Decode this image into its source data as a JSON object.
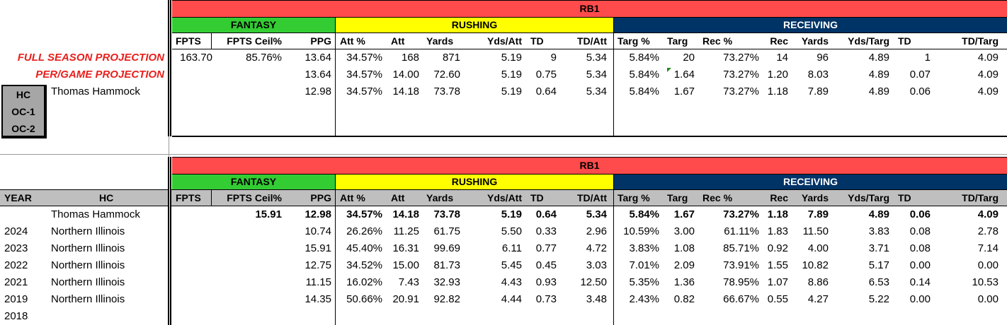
{
  "top": {
    "position_label": "RB1",
    "sections": {
      "fantasy": "FANTASY",
      "rushing": "RUSHING",
      "receiving": "RECEIVING"
    },
    "columns": [
      "FPTS",
      "FPTS Ceil%",
      "PPG",
      "Att %",
      "Att",
      "Yards",
      "Yds/Att",
      "TD",
      "TD/Att",
      "Targ %",
      "Targ",
      "Rec %",
      "Rec",
      "Yards",
      "Yds/Targ",
      "TD",
      "TD/Targ"
    ],
    "full_season_label": "FULL SEASON PROJECTION",
    "per_game_label": "PER/GAME PROJECTION",
    "coach_box": [
      "HC",
      "OC-1",
      "OC-2"
    ],
    "coach_name": "Thomas Hammock",
    "rows": [
      [
        "163.70",
        "85.76%",
        "13.64",
        "34.57%",
        "168",
        "871",
        "5.19",
        "9",
        "5.34",
        "5.84%",
        "20",
        "73.27%",
        "14",
        "96",
        "4.89",
        "1",
        "4.09"
      ],
      [
        "",
        "",
        "13.64",
        "34.57%",
        "14.00",
        "72.60",
        "5.19",
        "0.75",
        "5.34",
        "5.84%",
        "1.64",
        "73.27%",
        "1.20",
        "8.03",
        "4.89",
        "0.07",
        "4.09"
      ],
      [
        "",
        "",
        "12.98",
        "34.57%",
        "14.18",
        "73.78",
        "5.19",
        "0.64",
        "5.34",
        "5.84%",
        "1.67",
        "73.27%",
        "1.18",
        "7.89",
        "4.89",
        "0.06",
        "4.09"
      ]
    ]
  },
  "bottom": {
    "position_label": "RB1",
    "sections": {
      "fantasy": "FANTASY",
      "rushing": "RUSHING",
      "receiving": "RECEIVING"
    },
    "year_header": "YEAR",
    "hc_header": "HC",
    "columns": [
      "FPTS",
      "FPTS Ceil%",
      "PPG",
      "Att %",
      "Att",
      "Yards",
      "Yds/Att",
      "TD",
      "TD/Att",
      "Targ %",
      "Targ",
      "Rec %",
      "Rec",
      "Yards",
      "Yds/Targ",
      "TD",
      "TD/Targ"
    ],
    "summary": {
      "year": "",
      "coach": "Thomas Hammock",
      "values": [
        "",
        "15.91",
        "12.98",
        "34.57%",
        "14.18",
        "73.78",
        "5.19",
        "0.64",
        "5.34",
        "5.84%",
        "1.67",
        "73.27%",
        "1.18",
        "7.89",
        "4.89",
        "0.06",
        "4.09"
      ]
    },
    "rows": [
      {
        "year": "2024",
        "team": "Northern Illinois",
        "values": [
          "",
          "",
          "10.74",
          "26.26%",
          "11.25",
          "61.75",
          "5.50",
          "0.33",
          "2.96",
          "10.59%",
          "3.00",
          "61.11%",
          "1.83",
          "11.50",
          "3.83",
          "0.08",
          "2.78"
        ]
      },
      {
        "year": "2023",
        "team": "Northern Illinois",
        "values": [
          "",
          "",
          "15.91",
          "45.40%",
          "16.31",
          "99.69",
          "6.11",
          "0.77",
          "4.72",
          "3.83%",
          "1.08",
          "85.71%",
          "0.92",
          "4.00",
          "3.71",
          "0.08",
          "7.14"
        ]
      },
      {
        "year": "2022",
        "team": "Northern Illinois",
        "values": [
          "",
          "",
          "12.75",
          "34.52%",
          "15.00",
          "81.73",
          "5.45",
          "0.45",
          "3.03",
          "7.01%",
          "2.09",
          "73.91%",
          "1.55",
          "10.82",
          "5.17",
          "0.00",
          "0.00"
        ]
      },
      {
        "year": "2021",
        "team": "Northern Illinois",
        "values": [
          "",
          "",
          "11.15",
          "16.02%",
          "7.43",
          "32.93",
          "4.43",
          "0.93",
          "12.50",
          "5.35%",
          "1.36",
          "78.95%",
          "1.07",
          "8.86",
          "6.53",
          "0.14",
          "10.53"
        ]
      },
      {
        "year": "2019",
        "team": "Northern Illinois",
        "values": [
          "",
          "",
          "14.35",
          "50.66%",
          "20.91",
          "92.82",
          "4.44",
          "0.73",
          "3.48",
          "2.43%",
          "0.82",
          "66.67%",
          "0.55",
          "4.27",
          "5.22",
          "0.00",
          "0.00"
        ]
      },
      {
        "year": "2018",
        "team": "",
        "values": [
          "",
          "",
          "",
          "",
          "",
          "",
          "",
          "",
          "",
          "",
          "",
          "",
          "",
          "",
          "",
          "",
          ""
        ]
      }
    ]
  },
  "colors": {
    "rb1_band": "#ff4b4b",
    "fantasy_band": "#33cc33",
    "rushing_band": "#ffff00",
    "receiving_band": "#003366",
    "projection_label": "#e8201c",
    "coach_box": "#a6a6a6",
    "header_row_bg": "#bfbfbf"
  }
}
